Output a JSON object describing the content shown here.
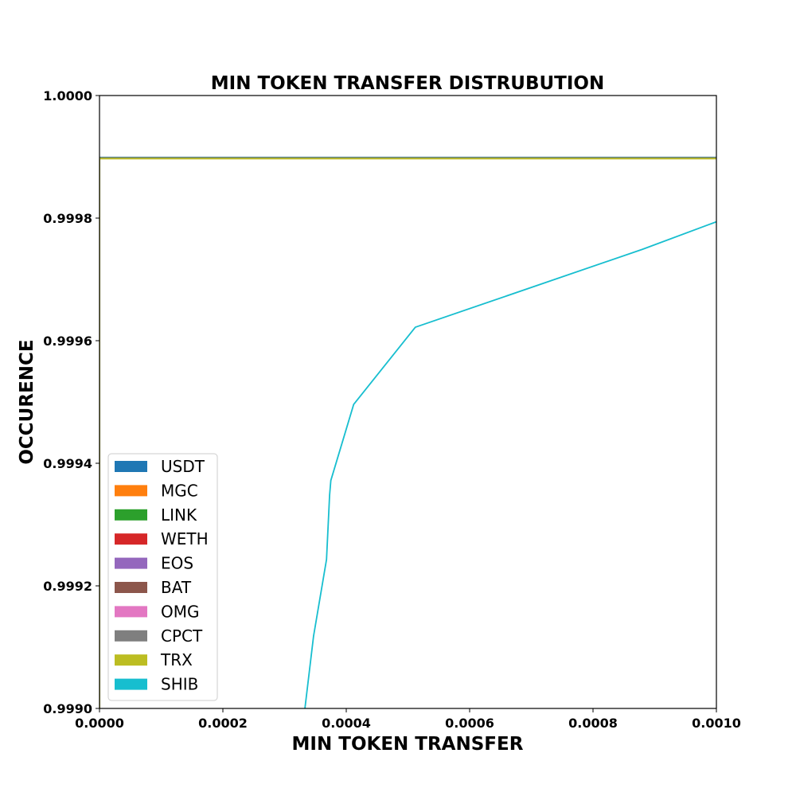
{
  "chart_data": {
    "type": "line",
    "title": "MIN TOKEN TRANSFER DISTRUBUTION",
    "xlabel": "MIN TOKEN TRANSFER",
    "ylabel": "OCCURENCE",
    "xlim": [
      0,
      0.001
    ],
    "ylim": [
      0.999,
      1.0
    ],
    "xticks": [
      "0.0000",
      "0.0002",
      "0.0004",
      "0.0006",
      "0.0008",
      "0.0010"
    ],
    "yticks": [
      "0.9990",
      "0.9992",
      "0.9994",
      "0.9996",
      "0.9998",
      "1.0000"
    ],
    "grid": false,
    "legend_position": "lower-left",
    "series": [
      {
        "name": "USDT",
        "color": "#1f77b4",
        "x": [
          0,
          0,
          0.001
        ],
        "y": [
          0.999,
          0.999899,
          0.999899
        ]
      },
      {
        "name": "MGC",
        "color": "#ff7f0e",
        "x": [
          0,
          0,
          0.001
        ],
        "y": [
          0.999,
          0.999898,
          0.999898
        ]
      },
      {
        "name": "LINK",
        "color": "#2ca02c",
        "x": [
          0,
          0,
          0.001
        ],
        "y": [
          0.999,
          0.9998985,
          0.9998985
        ]
      },
      {
        "name": "WETH",
        "color": "#d62728",
        "x": [
          0,
          0,
          0.001
        ],
        "y": [
          0.999,
          0.999898,
          0.999898
        ]
      },
      {
        "name": "EOS",
        "color": "#9467bd",
        "x": [
          0,
          0,
          0.001
        ],
        "y": [
          0.999,
          0.999898,
          0.999898
        ]
      },
      {
        "name": "BAT",
        "color": "#8c564b",
        "x": [
          0,
          0,
          0.001
        ],
        "y": [
          0.999,
          0.999898,
          0.999898
        ]
      },
      {
        "name": "OMG",
        "color": "#e377c2",
        "x": [
          0,
          0,
          0.001
        ],
        "y": [
          0.999,
          0.999898,
          0.999898
        ]
      },
      {
        "name": "CPCT",
        "color": "#7f7f7f",
        "x": [
          0,
          0,
          0.001
        ],
        "y": [
          0.999,
          0.999898,
          0.999898
        ]
      },
      {
        "name": "TRX",
        "color": "#bcbd22",
        "x": [
          0,
          0,
          0.001
        ],
        "y": [
          0.999,
          0.999897,
          0.999897
        ]
      },
      {
        "name": "SHIB",
        "color": "#17becf",
        "x": [
          0.000333,
          0.000347,
          0.000368,
          0.000373,
          0.000375,
          0.000412,
          0.000512,
          0.00088,
          0.001
        ],
        "y": [
          0.999,
          0.999118,
          0.999243,
          0.999348,
          0.999372,
          0.999496,
          0.999622,
          0.999749,
          0.999794
        ]
      }
    ]
  }
}
